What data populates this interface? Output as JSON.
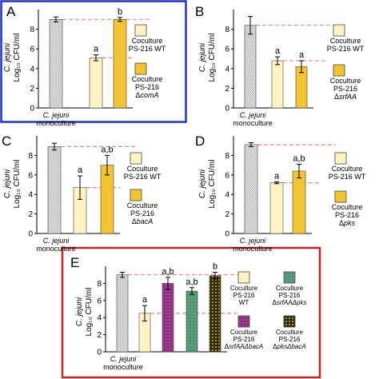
{
  "colors": {
    "monoculture_fill": "#d8d8d8",
    "wt_fill": "#fff3c4",
    "mutant_fill": "#f4c430",
    "dashed_line": "#f08080",
    "panel_a_border": "#2233cc",
    "panel_e_border": "#cc2222",
    "purple_fill": "#9b3a8f",
    "teal_fill": "#5a9e80",
    "black_yellow_fill": "#3a3410"
  },
  "chart_data": [
    {
      "type": "bar",
      "panel_label": "A",
      "ylabel_italic": "C. jejuni",
      "ylabel": "Log₁₀ CFU/ml",
      "ylim": [
        0,
        10
      ],
      "yticks": [
        "0",
        "2",
        "4",
        "6",
        "8"
      ],
      "ytick_values": [
        0,
        2,
        4,
        6,
        8
      ],
      "xlabel_italic": "C. jejuni",
      "xlabel": "monoculture",
      "bars": [
        {
          "key": "mono",
          "value": 9.0,
          "error": 0.25,
          "letter": ""
        },
        {
          "key": "wt",
          "value": 5.1,
          "error": 0.3,
          "letter": "a"
        },
        {
          "key": "mut",
          "value": 9.0,
          "error": 0.2,
          "letter": "b"
        }
      ],
      "legend": [
        {
          "key": "wt",
          "lines": [
            "Coculture",
            "PS-216 WT"
          ]
        },
        {
          "key": "mut",
          "lines": [
            "Coculture",
            "PS-216",
            "ΔcomA"
          ]
        }
      ]
    },
    {
      "type": "bar",
      "panel_label": "B",
      "ylabel_italic": "C. jejuni",
      "ylabel": "Log₁₀ CFU/ml",
      "ylim": [
        0,
        10
      ],
      "yticks": [
        "0",
        "2",
        "4",
        "6",
        "8"
      ],
      "ytick_values": [
        0,
        2,
        4,
        6,
        8
      ],
      "xlabel_italic": "C. jejuni",
      "xlabel": "monoculture",
      "bars": [
        {
          "key": "mono",
          "value": 8.4,
          "error": 0.9,
          "letter": ""
        },
        {
          "key": "wt",
          "value": 4.8,
          "error": 0.4,
          "letter": "a"
        },
        {
          "key": "mut",
          "value": 4.2,
          "error": 0.6,
          "letter": "a"
        }
      ],
      "legend": [
        {
          "key": "wt",
          "lines": [
            "Coculture",
            "PS-216 WT"
          ]
        },
        {
          "key": "mut",
          "lines": [
            "Coculture",
            "PS-216",
            "ΔsrfAA"
          ]
        }
      ]
    },
    {
      "type": "bar",
      "panel_label": "C",
      "ylabel_italic": "C. jejuni",
      "ylabel": "Log₁₀ CFU/ml",
      "ylim": [
        0,
        10
      ],
      "yticks": [
        "0",
        "2",
        "4",
        "6",
        "8"
      ],
      "ytick_values": [
        0,
        2,
        4,
        6,
        8
      ],
      "xlabel_italic": "C. jejuni",
      "xlabel": "monoculture",
      "bars": [
        {
          "key": "mono",
          "value": 8.9,
          "error": 0.35,
          "letter": ""
        },
        {
          "key": "wt",
          "value": 4.7,
          "error": 1.2,
          "letter": "a"
        },
        {
          "key": "mut",
          "value": 7.0,
          "error": 1.0,
          "letter": "a,b"
        }
      ],
      "legend": [
        {
          "key": "wt",
          "lines": [
            "Coculture",
            "PS-216 WT"
          ]
        },
        {
          "key": "mut",
          "lines": [
            "Coculture",
            "PS-216",
            "ΔbacA"
          ]
        }
      ]
    },
    {
      "type": "bar",
      "panel_label": "D",
      "ylabel_italic": "C. jejuni",
      "ylabel": "Log₁₀ CFU/ml",
      "ylim": [
        0,
        10
      ],
      "yticks": [
        "0",
        "2",
        "4",
        "6",
        "8"
      ],
      "ytick_values": [
        0,
        2,
        4,
        6,
        8
      ],
      "xlabel_italic": "C. jejuni",
      "xlabel": "monoculture",
      "bars": [
        {
          "key": "mono",
          "value": 9.1,
          "error": 0.2,
          "letter": ""
        },
        {
          "key": "wt",
          "value": 5.2,
          "error": 0.1,
          "letter": "a"
        },
        {
          "key": "mut",
          "value": 6.4,
          "error": 0.7,
          "letter": "a,b"
        }
      ],
      "legend": [
        {
          "key": "wt",
          "lines": [
            "Coculture",
            "PS-216 WT"
          ]
        },
        {
          "key": "mut",
          "lines": [
            "Coculture",
            "PS-216",
            "Δpks"
          ]
        }
      ]
    },
    {
      "type": "bar",
      "panel_label": "E",
      "ylabel_italic": "C. jejuni",
      "ylabel": "Log₁₀ CFU/ml",
      "ylim": [
        0,
        10
      ],
      "yticks": [
        "0",
        "2",
        "4",
        "6",
        "8"
      ],
      "ytick_values": [
        0,
        2,
        4,
        6,
        8
      ],
      "xlabel_italic": "C. jejuni",
      "xlabel": "monoculture",
      "bars": [
        {
          "key": "mono",
          "value": 9.0,
          "error": 0.3,
          "letter": ""
        },
        {
          "key": "wt",
          "value": 4.5,
          "error": 0.9,
          "letter": "a"
        },
        {
          "key": "purple",
          "value": 8.0,
          "error": 0.7,
          "letter": "a,b"
        },
        {
          "key": "teal",
          "value": 7.1,
          "error": 0.4,
          "letter": "a,b"
        },
        {
          "key": "black_yellow",
          "value": 8.9,
          "error": 0.4,
          "letter": "b"
        }
      ],
      "legend": [
        {
          "key": "wt",
          "lines": [
            "Coculture",
            "PS-216",
            "WT"
          ]
        },
        {
          "key": "teal",
          "lines": [
            "Coculture",
            "PS-216",
            "ΔsrfAAΔpks"
          ]
        },
        {
          "key": "purple",
          "lines": [
            "Coculture",
            "PS-216",
            "ΔsrfAAΔbacA"
          ]
        },
        {
          "key": "black_yellow",
          "lines": [
            "Coculture",
            "PS-216",
            "ΔpksΔbacA"
          ]
        }
      ]
    }
  ]
}
